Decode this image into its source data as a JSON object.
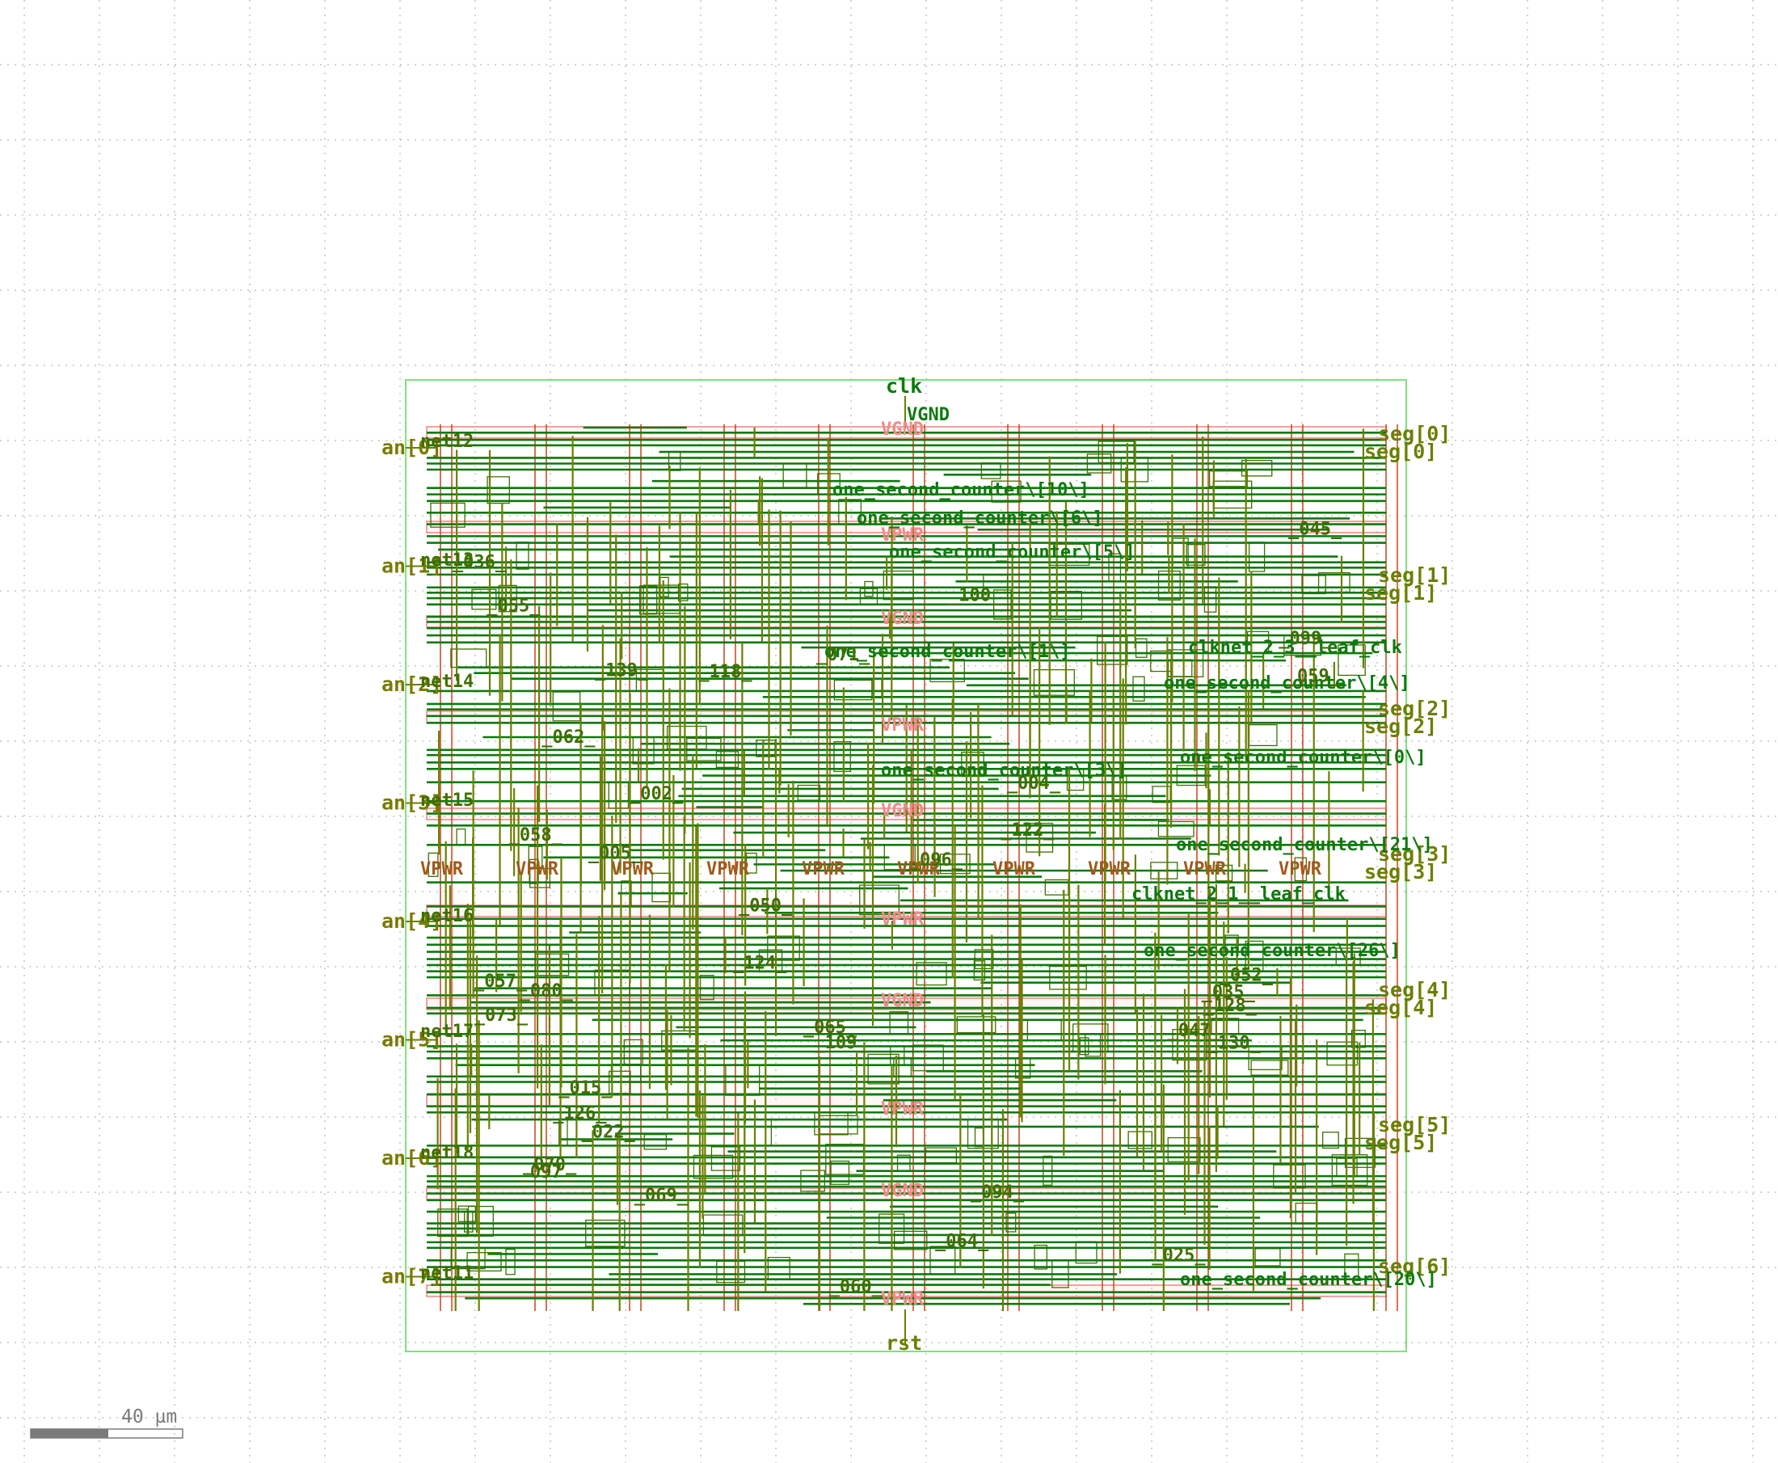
{
  "colors": {
    "background": "#ffffff",
    "grid": "#b9b9b9",
    "die_outline": "#7fe07f",
    "power_rail": "#f08a8a",
    "power_strap": "#c8441c",
    "metal_horizontal": "#0d7a0d",
    "metal_vertical": "#6b7f00",
    "io_label_left": "#7a7a00",
    "io_label_right": "#0d7a0d",
    "power_label": "#f08a8a",
    "power_label_row": "#a05a1a",
    "scale_bar": "#7a7a7a"
  },
  "top_pins": {
    "clk": "clk"
  },
  "bottom_pins": {
    "rst": "rst"
  },
  "left_pins": [
    "an[0]",
    "an[1]",
    "an[2]",
    "an[3]",
    "an[4]",
    "an[5]",
    "an[6]",
    "an[7]"
  ],
  "right_pins": [
    "seg[0]",
    "seg[1]",
    "seg[2]",
    "seg[3]",
    "seg[4]",
    "seg[5]",
    "seg[6]"
  ],
  "right_pins_dup": [
    "seg[0]",
    "seg[1]",
    "seg[2]",
    "seg[3]",
    "seg[4]",
    "seg[5]"
  ],
  "power": {
    "vgnd": "VGND",
    "vpwr": "VPWR"
  },
  "power_row_labels": [
    "VPWR",
    "VPWR",
    "VPWR",
    "VPWR",
    "VPWR",
    "VPWR",
    "VPWR",
    "VPWR",
    "VPWR",
    "VPWR"
  ],
  "center_power_labels": [
    "VGND",
    "VPWR",
    "VGND",
    "VPWR",
    "VGND",
    "VPWR",
    "VGND",
    "VPWR",
    "VGND",
    "VPWR"
  ],
  "net_labels": [
    "one_second_counter\\[10\\]",
    "one_second_counter\\[6\\]",
    "one_second_counter\\[5\\]",
    "one_second_counter\\[4\\]",
    "one_second_counter\\[0\\]",
    "one_second_counter\\[21\\]",
    "one_second_counter\\[26\\]",
    "one_second_counter\\[20\\]",
    "one_second_counter\\[1\\]",
    "one_second_counter\\[3\\]",
    "clknet_2_3__leaf_clk",
    "clknet_2_1__leaf_clk",
    "net12",
    "net13",
    "net14",
    "net15",
    "net16",
    "net17",
    "net18",
    "net11",
    "_080_",
    "_071_",
    "_062_",
    "_022_",
    "_059_",
    "_099_",
    "_100_",
    "_060_",
    "_035_",
    "_118_",
    "_002_",
    "_064_",
    "_057_",
    "_052_",
    "_055_",
    "_058_",
    "_047_",
    "_015_",
    "_050_",
    "_069_",
    "_070_",
    "_045_",
    "_097_",
    "_139_",
    "_073_",
    "_122_",
    "_124_",
    "_005_",
    "_004_",
    "_130_",
    "_126_",
    "_025_",
    "_036_",
    "_109_",
    "_094_",
    "_128_",
    "_065_",
    "_096_"
  ],
  "scale_bar": {
    "label": "40 µm"
  }
}
